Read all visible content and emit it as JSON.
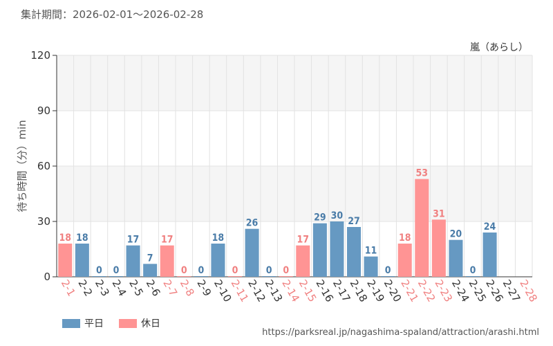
{
  "header": {
    "period": "集計期間：2026-02-01～2026-02-28"
  },
  "chart_data": {
    "type": "bar",
    "attraction": "嵐（あらし）",
    "ylabel": "待ち時間（分）min",
    "xlabel": "",
    "ylim": [
      0,
      120
    ],
    "yticks": [
      0,
      30,
      60,
      90,
      120
    ],
    "grid": true,
    "legend_position": "bottom-left",
    "categories": [
      "2-1",
      "2-2",
      "2-3",
      "2-4",
      "2-5",
      "2-6",
      "2-7",
      "2-8",
      "2-9",
      "2-10",
      "2-11",
      "2-12",
      "2-13",
      "2-14",
      "2-15",
      "2-16",
      "2-17",
      "2-18",
      "2-19",
      "2-20",
      "2-21",
      "2-22",
      "2-23",
      "2-24",
      "2-25",
      "2-26",
      "2-27",
      "2-28"
    ],
    "values": [
      18,
      18,
      0,
      0,
      17,
      7,
      17,
      0,
      0,
      18,
      0,
      26,
      0,
      0,
      17,
      29,
      30,
      27,
      11,
      0,
      18,
      53,
      31,
      20,
      0,
      24,
      null,
      null
    ],
    "day_type": [
      "holiday",
      "weekday",
      "weekday",
      "weekday",
      "weekday",
      "weekday",
      "holiday",
      "holiday",
      "weekday",
      "weekday",
      "holiday",
      "weekday",
      "weekday",
      "holiday",
      "holiday",
      "weekday",
      "weekday",
      "weekday",
      "weekday",
      "weekday",
      "holiday",
      "holiday",
      "holiday",
      "weekday",
      "weekday",
      "weekday",
      "weekday",
      "holiday"
    ]
  },
  "legend": {
    "items": [
      {
        "key": "weekday",
        "label": "平日",
        "color": "#6699c2"
      },
      {
        "key": "holiday",
        "label": "休日",
        "color": "#ff9494"
      }
    ]
  },
  "colors": {
    "weekday_bar": "#6699c2",
    "holiday_bar": "#ff9494",
    "weekday_label": "#4a7ca8",
    "holiday_label": "#f08080",
    "band": "#f5f5f5",
    "grid": "#e2e2e2"
  },
  "footer": {
    "source_url": "https://parksreal.jp/nagashima-spaland/attraction/arashi.html"
  }
}
